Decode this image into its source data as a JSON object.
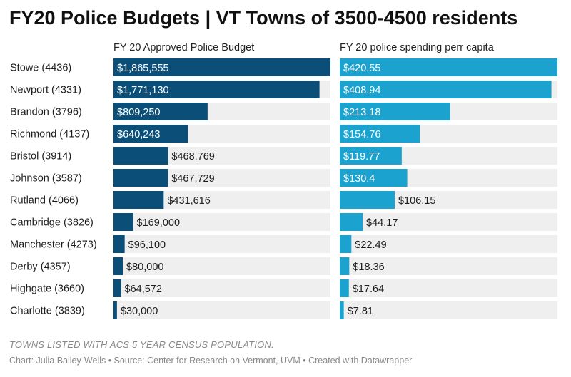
{
  "title": "FY20 Police Budgets | VT Towns of 3500-4500 residents",
  "note": "TOWNS LISTED WITH ACS 5 YEAR CENSUS POPULATION.",
  "credit": "Chart: Julia Bailey-Wells • Source: Center for Research on Vermont, UVM • Created with Datawrapper",
  "colors": {
    "budget": "#0b4f79",
    "per_capita": "#1ba2cf",
    "track": "#efefef"
  },
  "chart_data": {
    "type": "bar",
    "orientation": "horizontal",
    "categories": [
      "Stowe (4436)",
      "Newport (4331)",
      "Brandon (3796)",
      "Richmond (4137)",
      "Bristol (3914)",
      "Johnson (3587)",
      "Rutland (4066)",
      "Cambridge (3826)",
      "Manchester (4273)",
      "Derby (4357)",
      "Highgate (3660)",
      "Charlotte (3839)"
    ],
    "series": [
      {
        "name": "FY 20 Approved Police Budget",
        "values": [
          1865555,
          1771130,
          809250,
          640243,
          468769,
          467729,
          431616,
          169000,
          96100,
          80000,
          64572,
          30000
        ],
        "labels": [
          "$1,865,555",
          "$1,771,130",
          "$809,250",
          "$640,243",
          "$468,769",
          "$467,729",
          "$431,616",
          "$169,000",
          "$96,100",
          "$80,000",
          "$64,572",
          "$30,000"
        ]
      },
      {
        "name": "FY 20 police spending perr capita",
        "values": [
          420.55,
          408.94,
          213.18,
          154.76,
          119.77,
          130.4,
          106.15,
          44.17,
          22.49,
          18.36,
          17.64,
          7.81
        ],
        "labels": [
          "$420.55",
          "$408.94",
          "$213.18",
          "$154.76",
          "$119.77",
          "$130.4",
          "$106.15",
          "$44.17",
          "$22.49",
          "$18.36",
          "$17.64",
          "$7.81"
        ]
      }
    ],
    "xlim": [
      [
        0,
        1865555
      ],
      [
        0,
        420.55
      ]
    ]
  }
}
